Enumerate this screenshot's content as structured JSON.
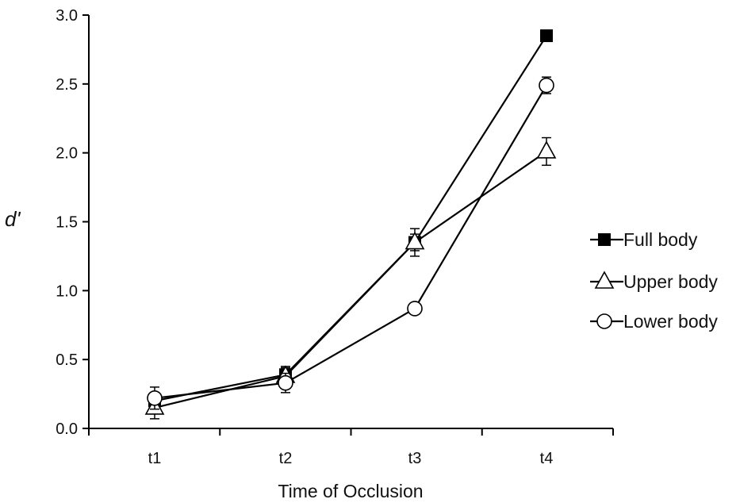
{
  "chart_data": {
    "type": "line",
    "title": "",
    "xlabel": "Time of Occlusion",
    "ylabel": "d'",
    "ylim": [
      0,
      3
    ],
    "yticks": [
      "0.0",
      "0.5",
      "1.0",
      "1.5",
      "2.0",
      "2.5",
      "3.0"
    ],
    "categories": [
      "t1",
      "t2",
      "t3",
      "t4"
    ],
    "grid": false,
    "legend_position": "right",
    "series": [
      {
        "name": "Full body",
        "marker": "filled-square",
        "values": [
          0.2,
          0.39,
          1.35,
          2.85
        ],
        "errors": [
          0.04,
          0.05,
          0.06,
          0.04
        ]
      },
      {
        "name": "Upper body",
        "marker": "open-triangle",
        "values": [
          0.15,
          0.38,
          1.35,
          2.01
        ],
        "errors": [
          0.08,
          0.07,
          0.1,
          0.1
        ]
      },
      {
        "name": "Lower body",
        "marker": "open-circle",
        "values": [
          0.22,
          0.33,
          0.87,
          2.49
        ],
        "errors": [
          0.08,
          0.07,
          0.03,
          0.06
        ]
      }
    ]
  }
}
